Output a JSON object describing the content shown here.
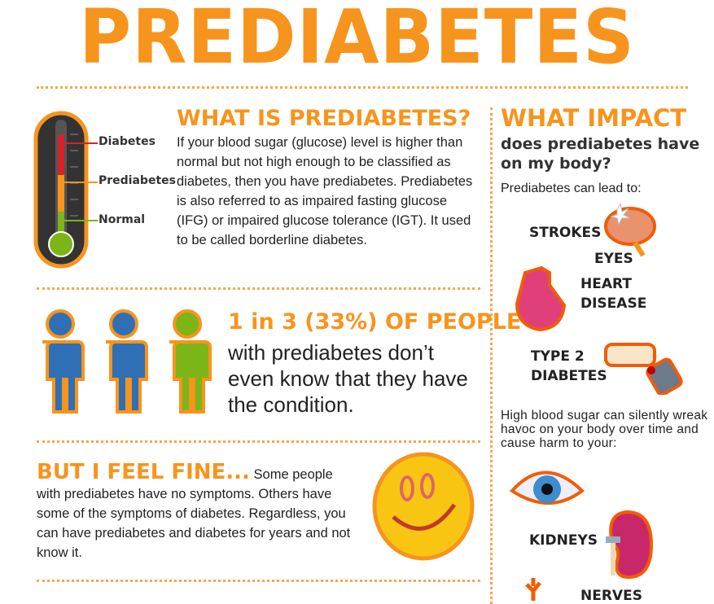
{
  "title": "PREDIABETES",
  "colors": {
    "accent": "#f7941d",
    "blue": "#2f6fb5",
    "green": "#7cb518",
    "red": "#d6232a"
  },
  "what_is": {
    "heading": "WHAT IS PREDIABETES?",
    "body": "If your blood sugar (glucose) level is higher than normal but not high enough to be classified as diabetes, then you have prediabetes. Prediabetes is also referred to as impaired fasting glucose (IFG) or impaired glucose tolerance (IGT). It used to be called borderline diabetes.",
    "thermometer_labels": [
      "Diabetes",
      "Prediabetes",
      "Normal"
    ]
  },
  "stat": {
    "heading": "1 in 3 (33%) OF PEOPLE",
    "body": "with prediabetes don’t even know that they have the condition."
  },
  "feel_fine": {
    "heading": "BUT I FEEL FINE...",
    "body": "Some people with prediabetes have no symptoms. Others have some of the symptoms of diabetes. Regardless, you can have prediabetes and diabetes for years and not know it."
  },
  "impact": {
    "heading": "WHAT IMPACT",
    "subheading": "does prediabetes have on my body?",
    "lead": "Prediabetes can lead to:",
    "conditions": [
      "STROKES",
      "HEART DISEASE",
      "TYPE 2 DIABETES"
    ],
    "harm_intro": "High blood sugar can silently wreak havoc on your body over time and cause harm to your:",
    "organs": [
      "EYES",
      "KIDNEYS",
      "NERVES"
    ]
  }
}
